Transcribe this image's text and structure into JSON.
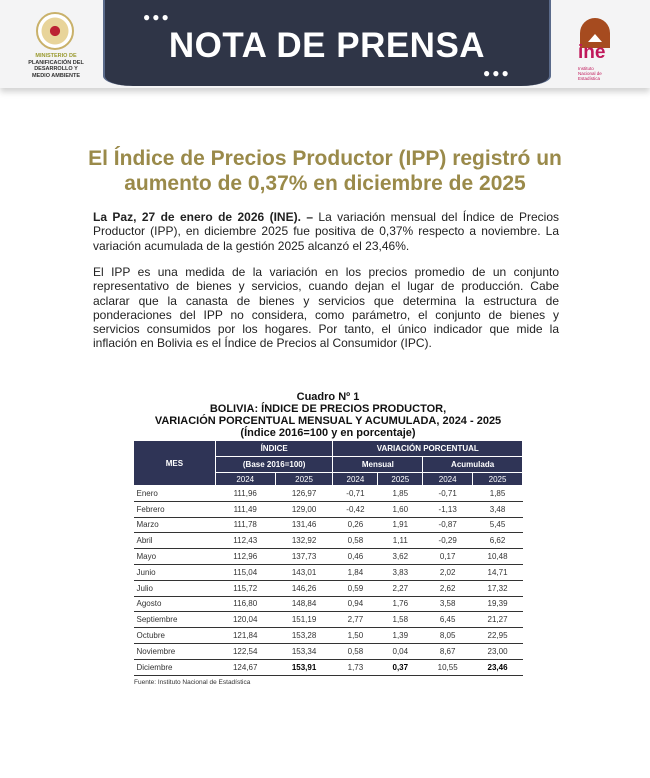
{
  "header": {
    "banner_title": "NOTA DE PRENSA",
    "ministry": [
      "MINISTERIO DE",
      "PLANIFICACIÓN DEL",
      "DESARROLLO Y",
      "MEDIO AMBIENTE"
    ],
    "ine_logo_text": "ine",
    "ine_subtitle": "Instituto Nacional de Estadística"
  },
  "title": "El Índice de Precios Productor (IPP) registró un aumento de 0,37% en diciembre de 2025",
  "paragraph1_lead": "La Paz, 27 de enero de 2026 (INE). –",
  "paragraph1": " La variación mensual del Índice de Precios Productor (IPP), en diciembre 2025 fue positiva de 0,37% respecto a noviembre. La variación acumulada de la gestión 2025 alcanzó el 23,46%.",
  "paragraph2": "El IPP es una medida de la variación en los precios promedio de un conjunto representativo de bienes y servicios, cuando dejan el lugar de producción. Cabe aclarar que la canasta de bienes y servicios que determina la estructura de ponderaciones del IPP no considera, como parámetro, el conjunto de bienes y servicios consumidos por los hogares. Por tanto, el único indicador que mide la inflación en Bolivia es el Índice de Precios al Consumidor (IPC).",
  "table": {
    "caption": [
      "Cuadro Nº 1",
      "BOLIVIA: ÍNDICE DE PRECIOS PRODUCTOR,",
      "VARIACIÓN PORCENTUAL MENSUAL Y ACUMULADA, 2024 - 2025",
      "(Índice 2016=100 y en porcentaje)"
    ],
    "headers": {
      "mes": "MES",
      "indice": "ÍNDICE",
      "base": "(Base 2016=100)",
      "variacion": "VARIACIÓN PORCENTUAL",
      "mensual": "Mensual",
      "acumulada": "Acumulada",
      "years": [
        "2024",
        "2025",
        "2024",
        "2025",
        "2024",
        "2025"
      ]
    },
    "rows": [
      [
        "Enero",
        "111,96",
        "126,97",
        "-0,71",
        "1,85",
        "-0,71",
        "1,85"
      ],
      [
        "Febrero",
        "111,49",
        "129,00",
        "-0,42",
        "1,60",
        "-1,13",
        "3,48"
      ],
      [
        "Marzo",
        "111,78",
        "131,46",
        "0,26",
        "1,91",
        "-0,87",
        "5,45"
      ],
      [
        "Abril",
        "112,43",
        "132,92",
        "0,58",
        "1,11",
        "-0,29",
        "6,62"
      ],
      [
        "Mayo",
        "112,96",
        "137,73",
        "0,46",
        "3,62",
        "0,17",
        "10,48"
      ],
      [
        "Junio",
        "115,04",
        "143,01",
        "1,84",
        "3,83",
        "2,02",
        "14,71"
      ],
      [
        "Julio",
        "115,72",
        "146,26",
        "0,59",
        "2,27",
        "2,62",
        "17,32"
      ],
      [
        "Agosto",
        "116,80",
        "148,84",
        "0,94",
        "1,76",
        "3,58",
        "19,39"
      ],
      [
        "Septiembre",
        "120,04",
        "151,19",
        "2,77",
        "1,58",
        "6,45",
        "21,27"
      ],
      [
        "Octubre",
        "121,84",
        "153,28",
        "1,50",
        "1,39",
        "8,05",
        "22,95"
      ],
      [
        "Noviembre",
        "122,54",
        "153,34",
        "0,58",
        "0,04",
        "8,67",
        "23,00"
      ],
      [
        "Diciembre",
        "124,67",
        "153,91",
        "1,73",
        "0,37",
        "10,55",
        "23,46"
      ]
    ],
    "source": "Fuente: Instituto Nacional de Estadística"
  },
  "colors": {
    "title": "#9a8a4a",
    "table_header": "#2f3456",
    "banner": "#2f3547"
  }
}
